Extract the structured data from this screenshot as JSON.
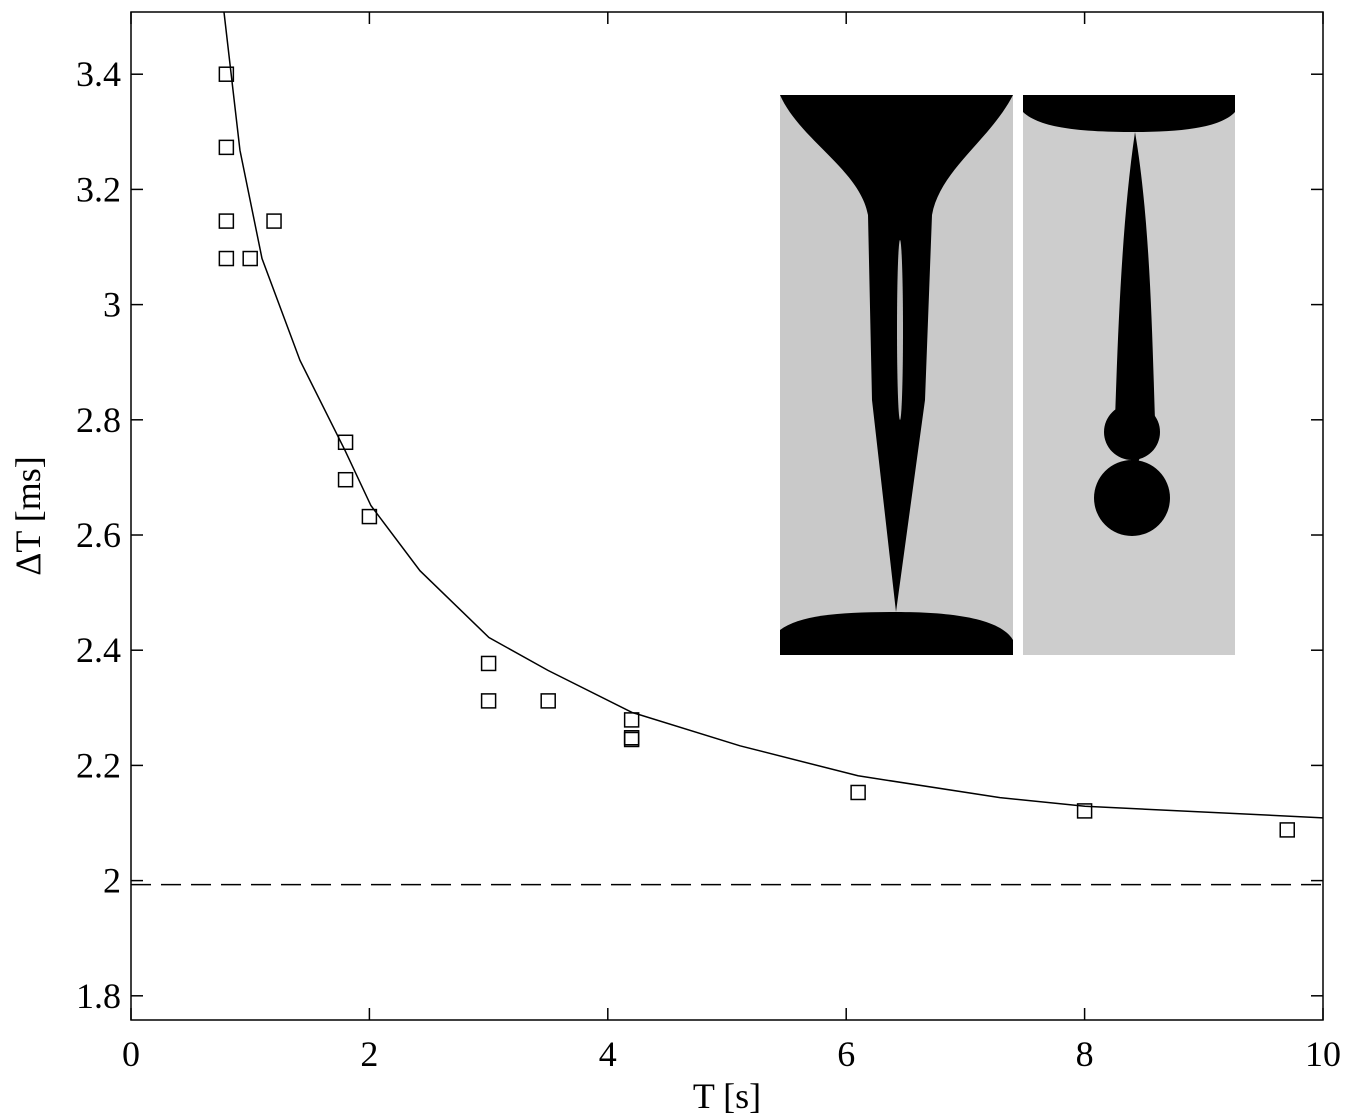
{
  "chart_data": {
    "type": "scatter",
    "xlabel": "T [s]",
    "ylabel": "ΔT [ms]",
    "xlim": [
      0,
      10
    ],
    "ylim": [
      1.758,
      3.508
    ],
    "xticks": [
      0,
      2,
      4,
      6,
      8,
      10
    ],
    "yticks": [
      1.8,
      2,
      2.2,
      2.4,
      2.6,
      2.8,
      3,
      3.2,
      3.4
    ],
    "color": "#000000",
    "marker": "square",
    "x": [
      0.8,
      0.8,
      0.8,
      1.2,
      0.8,
      1.0,
      1.8,
      1.8,
      2.0,
      3.0,
      3.0,
      3.5,
      4.2,
      4.2,
      4.2,
      6.1,
      8.0,
      9.7
    ],
    "y": [
      3.4,
      3.273,
      3.145,
      3.145,
      3.08,
      3.08,
      2.761,
      2.696,
      2.632,
      2.377,
      2.312,
      2.312,
      2.279,
      2.248,
      2.245,
      2.153,
      2.121,
      2.088
    ],
    "fit": {
      "x": [
        0.78,
        0.914,
        1.099,
        1.418,
        1.795,
        2.013,
        2.424,
        3.003,
        3.498,
        4.203,
        5.109,
        6.099,
        7.29,
        8.003,
        10
      ],
      "y": [
        3.508,
        3.268,
        3.08,
        2.903,
        2.747,
        2.651,
        2.538,
        2.422,
        2.365,
        2.292,
        2.234,
        2.182,
        2.144,
        2.129,
        2.109
      ]
    },
    "asymptote": 1.993
  }
}
